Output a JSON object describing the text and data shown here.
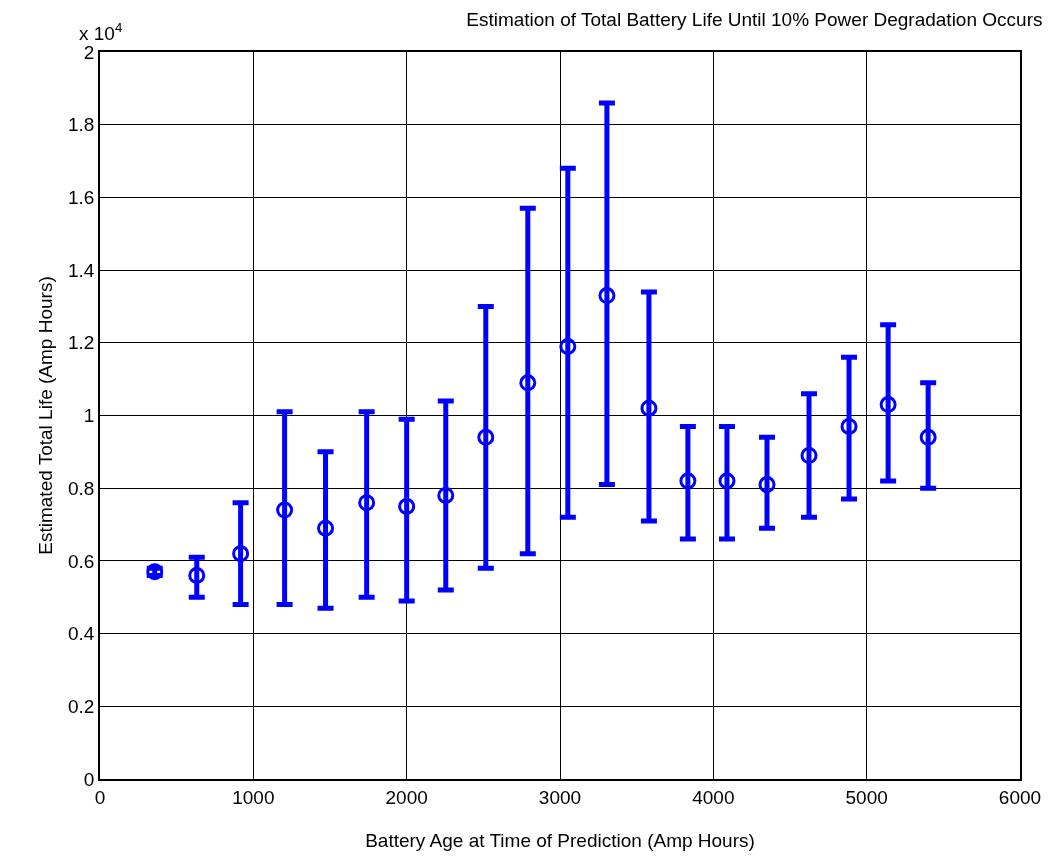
{
  "chart_data": {
    "type": "scatter",
    "title": "Estimation of Total Battery Life Until 10% Power Degradation Occurs",
    "xlabel": "Battery Age at Time of Prediction (Amp Hours)",
    "ylabel": "Estimated Total Life (Amp Hours)",
    "annotations": [
      "x 10$^{4}$"
    ],
    "x": [
      357,
      631,
      917,
      1204,
      1471,
      1739,
      2000,
      2255,
      2516,
      2790,
      3051,
      3306,
      3580,
      3834,
      4089,
      4350,
      4624,
      4885,
      5140,
      5401
    ],
    "series": [
      {
        "color": "#0000ff",
        "values": [
          0.57,
          0.56,
          0.62,
          0.74,
          0.69,
          0.76,
          0.75,
          0.78,
          0.94,
          1.09,
          1.19,
          1.33,
          1.02,
          0.82,
          0.82,
          0.81,
          0.89,
          0.97,
          1.03,
          0.94
        ],
        "errors": [
          [
            0.56,
            0.58
          ],
          [
            0.5,
            0.61
          ],
          [
            0.48,
            0.76
          ],
          [
            0.48,
            1.01
          ],
          [
            0.47,
            0.9
          ],
          [
            0.5,
            1.01
          ],
          [
            0.49,
            0.99
          ],
          [
            0.52,
            1.04
          ],
          [
            0.58,
            1.3
          ],
          [
            0.62,
            1.57
          ],
          [
            0.72,
            1.68
          ],
          [
            0.81,
            1.86
          ],
          [
            0.71,
            1.34
          ],
          [
            0.66,
            0.97
          ],
          [
            0.66,
            0.97
          ],
          [
            0.69,
            0.94
          ],
          [
            0.72,
            1.06
          ],
          [
            0.77,
            1.16
          ],
          [
            0.82,
            1.25
          ],
          [
            0.8,
            1.09
          ]
        ]
      }
    ],
    "xlim": [
      0,
      6000
    ],
    "xticks": [
      0,
      1000,
      2000,
      3000,
      4000,
      5000,
      6000
    ],
    "ylim": [
      0,
      2
    ],
    "yticks": [
      0,
      0.2,
      0.4,
      0.6,
      0.8,
      1,
      1.2,
      1.4,
      1.6,
      1.8,
      2
    ],
    "grid": true,
    "marker": "circle",
    "line_style": "none"
  }
}
